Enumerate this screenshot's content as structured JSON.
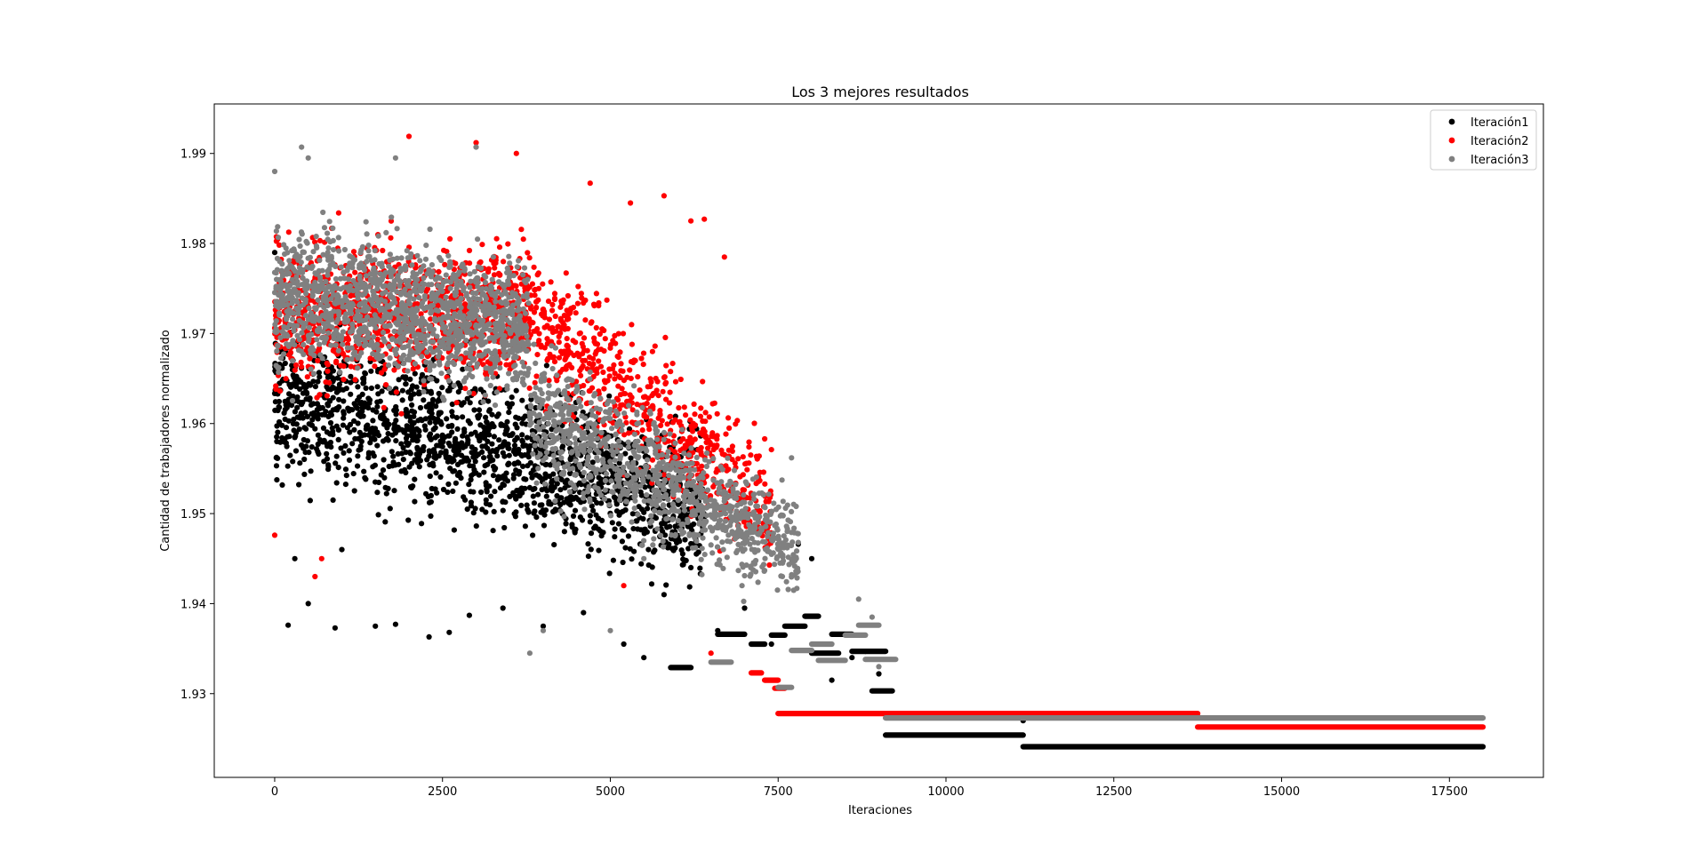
{
  "chart_data": {
    "type": "scatter",
    "title": "Los 3 mejores resultados",
    "xlabel": "Iteraciones",
    "ylabel": "Cantidad de trabajadores normalizado",
    "xlim": [
      -900,
      18900
    ],
    "ylim": [
      1.9207,
      1.9955
    ],
    "xticks": [
      0,
      2500,
      5000,
      7500,
      10000,
      12500,
      15000,
      17500
    ],
    "yticks": [
      1.93,
      1.94,
      1.95,
      1.96,
      1.97,
      1.98,
      1.99
    ],
    "xtick_labels": [
      "0",
      "2500",
      "5000",
      "7500",
      "10000",
      "12500",
      "15000",
      "17500"
    ],
    "ytick_labels": [
      "1.93",
      "1.94",
      "1.95",
      "1.96",
      "1.97",
      "1.98",
      "1.99"
    ],
    "grid": false,
    "legend": "upper right",
    "series": [
      {
        "name": "Iteración1",
        "color": "#000000",
        "points": [
          [
            0,
            1.979
          ],
          [
            200,
            1.9376
          ],
          [
            300,
            1.945
          ],
          [
            500,
            1.94
          ],
          [
            900,
            1.9373
          ],
          [
            1000,
            1.946
          ],
          [
            1500,
            1.9375
          ],
          [
            1800,
            1.9377
          ],
          [
            2300,
            1.9363
          ],
          [
            2600,
            1.9368
          ],
          [
            2900,
            1.9387
          ],
          [
            3400,
            1.9395
          ],
          [
            4000,
            1.9375
          ],
          [
            4600,
            1.939
          ],
          [
            5200,
            1.9355
          ],
          [
            5500,
            1.934
          ],
          [
            5800,
            1.941
          ],
          [
            6200,
            1.944
          ],
          [
            6600,
            1.937
          ],
          [
            7000,
            1.9395
          ],
          [
            7400,
            1.9355
          ],
          [
            7800,
            1.9466
          ],
          [
            8000,
            1.945
          ],
          [
            8300,
            1.9315
          ],
          [
            8600,
            1.934
          ],
          [
            9000,
            1.9322
          ],
          [
            11150,
            1.927
          ]
        ],
        "bands": [
          {
            "x": [
              0,
              6400
            ],
            "center": [
              1.9635,
              1.9505
            ],
            "spread": [
              0.0145,
              0.0125
            ],
            "n": 1700
          }
        ],
        "segments": [
          [
            5900,
            6200,
            1.9329
          ],
          [
            6600,
            7000,
            1.9366
          ],
          [
            7100,
            7300,
            1.9355
          ],
          [
            7400,
            7600,
            1.9365
          ],
          [
            7600,
            7900,
            1.9375
          ],
          [
            7900,
            8100,
            1.9386
          ],
          [
            8000,
            8400,
            1.9345
          ],
          [
            8300,
            8600,
            1.9366
          ],
          [
            8600,
            8800,
            1.9347
          ],
          [
            8800,
            9100,
            1.9347
          ],
          [
            8900,
            9200,
            1.9303
          ],
          [
            9100,
            11150,
            1.9254
          ],
          [
            11150,
            18000,
            1.9241
          ]
        ]
      },
      {
        "name": "Iteración2",
        "color": "#ff0000",
        "points": [
          [
            0,
            1.9476
          ],
          [
            600,
            1.943
          ],
          [
            700,
            1.945
          ],
          [
            2000,
            1.9919
          ],
          [
            3000,
            1.9912
          ],
          [
            3600,
            1.99
          ],
          [
            4700,
            1.9867
          ],
          [
            5300,
            1.9845
          ],
          [
            5800,
            1.9853
          ],
          [
            6200,
            1.9825
          ],
          [
            6400,
            1.9827
          ],
          [
            6700,
            1.9785
          ],
          [
            7300,
            1.9583
          ],
          [
            7400,
            1.9571
          ],
          [
            5200,
            1.942
          ],
          [
            6500,
            1.9345
          ]
        ],
        "bands": [
          {
            "x": [
              0,
              3800
            ],
            "center": [
              1.972,
              1.972
            ],
            "spread": [
              0.0135,
              0.0125
            ],
            "n": 1050
          },
          {
            "x": [
              3800,
              7400
            ],
            "center": [
              1.972,
              1.95
            ],
            "spread": [
              0.0135,
              0.011
            ],
            "n": 650
          }
        ],
        "segments": [
          [
            7100,
            7250,
            1.9323
          ],
          [
            7300,
            7500,
            1.9315
          ],
          [
            7450,
            7600,
            1.9306
          ],
          [
            7500,
            13750,
            1.9278
          ],
          [
            13750,
            18000,
            1.9263
          ]
        ]
      },
      {
        "name": "Iteración3",
        "color": "#808080",
        "points": [
          [
            0,
            1.988
          ],
          [
            400,
            1.9907
          ],
          [
            500,
            1.9895
          ],
          [
            1800,
            1.9895
          ],
          [
            3000,
            1.9907
          ],
          [
            3800,
            1.9345
          ],
          [
            4000,
            1.937
          ],
          [
            5000,
            1.937
          ],
          [
            5500,
            1.945
          ],
          [
            7700,
            1.9562
          ],
          [
            8700,
            1.9405
          ],
          [
            8900,
            1.9385
          ],
          [
            9000,
            1.933
          ]
        ],
        "bands": [
          {
            "x": [
              0,
              3800
            ],
            "center": [
              1.9745,
              1.9705
            ],
            "spread": [
              0.0125,
              0.0125
            ],
            "n": 1400
          },
          {
            "x": [
              3800,
              7800
            ],
            "center": [
              1.9615,
              1.9455
            ],
            "spread": [
              0.0115,
              0.009
            ],
            "n": 1000
          }
        ],
        "segments": [
          [
            6500,
            6800,
            1.9335
          ],
          [
            7500,
            7700,
            1.9307
          ],
          [
            7700,
            8000,
            1.9348
          ],
          [
            8000,
            8300,
            1.9355
          ],
          [
            8100,
            8500,
            1.9337
          ],
          [
            8500,
            8800,
            1.9365
          ],
          [
            8700,
            9000,
            1.9376
          ],
          [
            8800,
            9250,
            1.9338
          ],
          [
            9100,
            18000,
            1.9273
          ]
        ]
      }
    ]
  }
}
